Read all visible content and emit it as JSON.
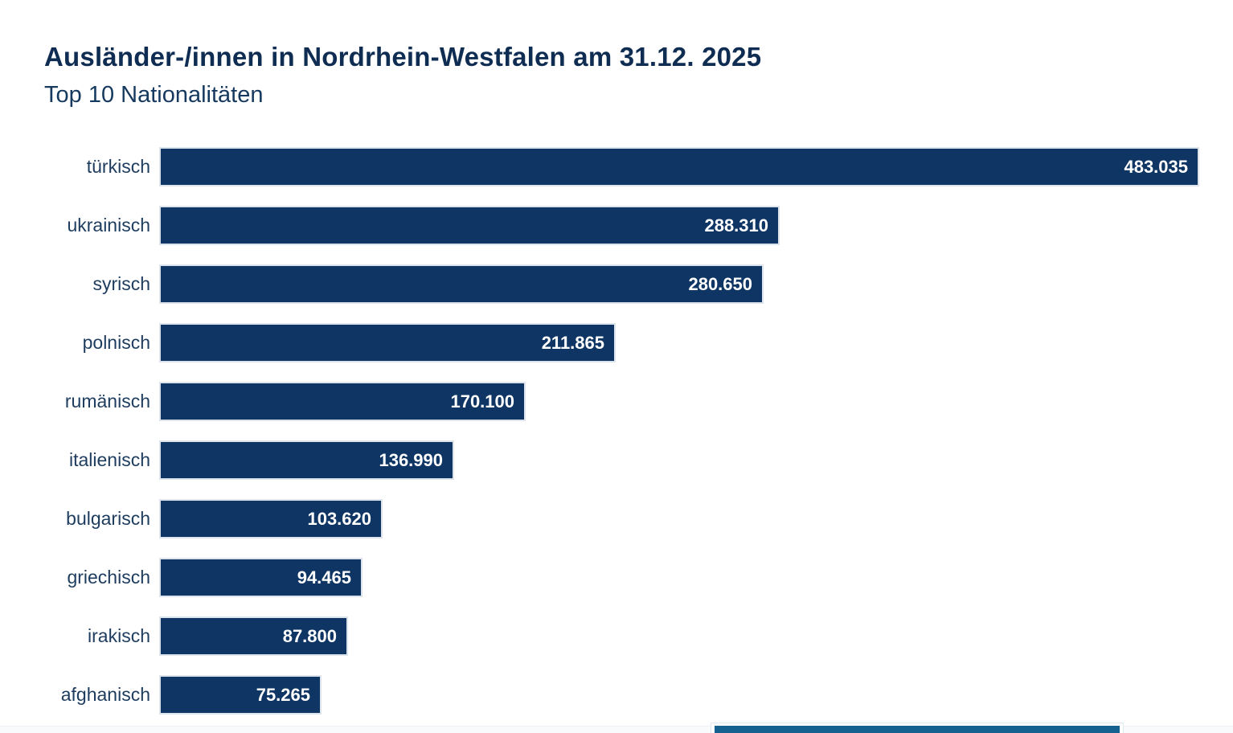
{
  "header": {
    "title": "Ausländer-/innen in Nordrhein-Westfalen am 31.12. 2025",
    "subtitle": "Top 10 Nationalitäten"
  },
  "chart_data": {
    "type": "bar",
    "orientation": "horizontal",
    "title": "Ausländer-/innen in Nordrhein-Westfalen am 31.12. 2025",
    "subtitle": "Top 10 Nationalitäten",
    "categories": [
      "türkisch",
      "ukrainisch",
      "syrisch",
      "polnisch",
      "rumänisch",
      "italienisch",
      "bulgarisch",
      "griechisch",
      "irakisch",
      "afghanisch"
    ],
    "values": [
      483035,
      288310,
      280650,
      211865,
      170100,
      136990,
      103620,
      94465,
      87800,
      75265
    ],
    "value_labels": [
      "483.035",
      "288.310",
      "280.650",
      "211.865",
      "170.100",
      "136.990",
      "103.620",
      "94.465",
      "87.800",
      "75.265"
    ],
    "xlim": [
      0,
      483035
    ],
    "grid": false,
    "legend": false,
    "value_label_position": "inside-right"
  },
  "style": {
    "bar_color": "#0e3563",
    "bar_border_color": "#dce3eb",
    "value_text_color": "#ffffff",
    "label_color": "#1d3c5e",
    "title_color": "#0f2d52",
    "background_color": "#ffffff",
    "footer_bar_color": "#156290"
  }
}
